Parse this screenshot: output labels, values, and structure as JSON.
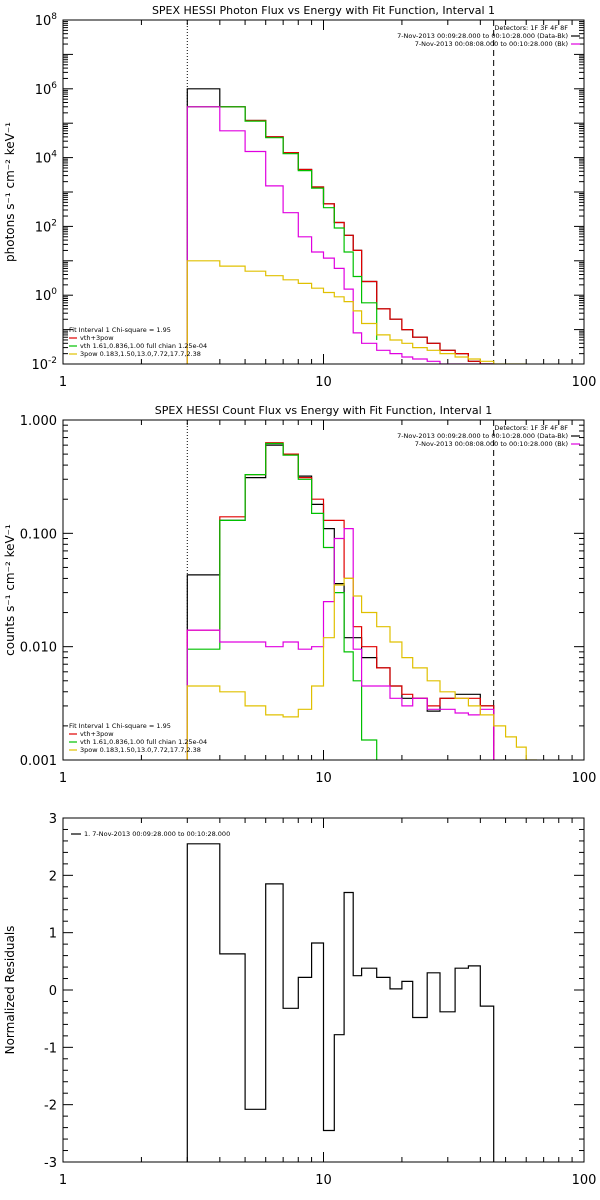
{
  "chart_data": [
    {
      "type": "line",
      "title": "SPEX HESSI Photon Flux vs Energy with Fit Function, Interval 1",
      "ylabel": "photons s⁻¹ cm⁻² keV⁻¹",
      "xscale": "log",
      "yscale": "log",
      "xlim": [
        1,
        100
      ],
      "ylim": [
        0.01,
        100000000
      ],
      "xticks": [
        {
          "v": 1,
          "label": "1"
        },
        {
          "v": 10,
          "label": "10"
        },
        {
          "v": 100,
          "label": "100"
        }
      ],
      "yticks": [
        {
          "v": 0.01,
          "base": "10",
          "exp": "-2"
        },
        {
          "v": 1,
          "base": "10",
          "exp": "0"
        },
        {
          "v": 100,
          "base": "10",
          "exp": "2"
        },
        {
          "v": 10000,
          "base": "10",
          "exp": "4"
        },
        {
          "v": 1000000,
          "base": "10",
          "exp": "6"
        },
        {
          "v": 100000000,
          "base": "10",
          "exp": "8"
        }
      ],
      "vlines": [
        {
          "x": 3,
          "style": "dotted"
        },
        {
          "x": 45,
          "style": "dashed"
        }
      ],
      "legend_top": [
        {
          "text": "Detectors: 1F 3F 4F 8F",
          "color": ""
        },
        {
          "text": "7-Nov-2013 00:09:28.000 to 00:10:28.000 (Data-Bk)",
          "color": "#000000"
        },
        {
          "text": "7-Nov-2013 00:08:08.000 to 00:10:28.000 (Bk)",
          "color": "#e000e0"
        }
      ],
      "legend_bottom": [
        {
          "text": "Fit Interval 1   Chi-square = 1.95",
          "color": ""
        },
        {
          "text": "vth+3pow",
          "color": "#e00000"
        },
        {
          "text": "vth 1.61,0.836,1.00  full chian 1.25e-04",
          "color": "#00c000"
        },
        {
          "text": "3pow 0.183,1.50,13.0,7.72,17.7,2.38",
          "color": "#e0c000"
        }
      ],
      "series": [
        {
          "color": "#000000",
          "edges": [
            3,
            4,
            5,
            6,
            7,
            8,
            9,
            10,
            11,
            12,
            13,
            14,
            16,
            18,
            20,
            22,
            25,
            28,
            32,
            36,
            40,
            45
          ],
          "values": [
            1000000,
            300000,
            120000,
            40000,
            14000,
            4500,
            1400,
            450,
            130,
            55,
            20,
            2.5,
            0.4,
            0.2,
            0.1,
            0.06,
            0.04,
            0.025,
            0.02,
            0.012,
            0.01
          ]
        },
        {
          "color": "#e00000",
          "edges": [
            3,
            4,
            5,
            6,
            7,
            8,
            9,
            10,
            11,
            12,
            13,
            14,
            16,
            18,
            20,
            22,
            25,
            28,
            32,
            36,
            40,
            45
          ],
          "values": [
            300000,
            300000,
            120000,
            40000,
            14000,
            4500,
            1400,
            450,
            130,
            55,
            20,
            2.5,
            0.4,
            0.2,
            0.1,
            0.06,
            0.04,
            0.025,
            0.02,
            0.012,
            0.01
          ]
        },
        {
          "color": "#00c000",
          "edges": [
            3,
            4,
            5,
            6,
            7,
            8,
            9,
            10,
            11,
            12,
            13,
            14,
            16
          ],
          "values": [
            300000,
            300000,
            115000,
            38000,
            13000,
            4200,
            1300,
            350,
            90,
            18,
            3.5,
            0.6,
            0.05
          ]
        },
        {
          "color": "#e000e0",
          "edges": [
            3,
            4,
            5,
            6,
            7,
            8,
            9,
            10,
            11,
            12,
            13,
            14,
            16,
            18,
            20,
            22,
            25,
            28,
            32,
            36,
            40,
            45
          ],
          "values": [
            300000,
            60000,
            15000,
            1500,
            250,
            50,
            18,
            12,
            6,
            1.5,
            0.08,
            0.04,
            0.025,
            0.02,
            0.016,
            0.014,
            0.012,
            0.01,
            0.01,
            0.01,
            0.01
          ]
        },
        {
          "color": "#e0c000",
          "edges": [
            3,
            4,
            5,
            6,
            7,
            8,
            9,
            10,
            11,
            12,
            13,
            14,
            16,
            18,
            20,
            22,
            25,
            28,
            32,
            36,
            40,
            45,
            50,
            55,
            60
          ],
          "values": [
            10,
            7,
            5,
            3.7,
            2.8,
            2.2,
            1.6,
            1.2,
            0.9,
            0.65,
            0.35,
            0.15,
            0.07,
            0.05,
            0.04,
            0.03,
            0.025,
            0.02,
            0.016,
            0.014,
            0.012,
            0.01,
            0.01,
            0.01
          ]
        }
      ]
    },
    {
      "type": "line",
      "title": "SPEX HESSI Count Flux vs Energy with Fit Function, Interval 1",
      "ylabel": "counts s⁻¹ cm⁻² keV⁻¹",
      "xscale": "log",
      "yscale": "log",
      "xlim": [
        1,
        100
      ],
      "ylim": [
        0.001,
        1
      ],
      "xticks": [
        {
          "v": 1,
          "label": "1"
        },
        {
          "v": 10,
          "label": "10"
        },
        {
          "v": 100,
          "label": "100"
        }
      ],
      "yticks": [
        {
          "v": 0.001,
          "label": "0.001"
        },
        {
          "v": 0.01,
          "label": "0.010"
        },
        {
          "v": 0.1,
          "label": "0.100"
        },
        {
          "v": 1,
          "label": "1.000"
        }
      ],
      "vlines": [
        {
          "x": 3,
          "style": "dotted"
        },
        {
          "x": 45,
          "style": "dashed"
        }
      ],
      "legend_top": [
        {
          "text": "Detectors: 1F 3F 4F 8F",
          "color": ""
        },
        {
          "text": "7-Nov-2013 00:09:28.000 to 00:10:28.000 (Data-Bk)",
          "color": "#000000"
        },
        {
          "text": "7-Nov-2013 00:08:08.000 to 00:10:28.000 (Bk)",
          "color": "#e000e0"
        }
      ],
      "legend_bottom": [
        {
          "text": "Fit Interval 1   Chi-square = 1.95",
          "color": ""
        },
        {
          "text": "vth+3pow",
          "color": "#e00000"
        },
        {
          "text": "vth 1.61,0.836,1.00  full chian 1.25e-04",
          "color": "#00c000"
        },
        {
          "text": "3pow 0.183,1.50,13.0,7.72,17.7,2.38",
          "color": "#e0c000"
        }
      ],
      "series": [
        {
          "color": "#000000",
          "edges": [
            3,
            4,
            5,
            6,
            7,
            8,
            9,
            10,
            11,
            12,
            13,
            14,
            16,
            18,
            20,
            22,
            25,
            28,
            32,
            36,
            40,
            45
          ],
          "values": [
            0.043,
            0.13,
            0.31,
            0.6,
            0.5,
            0.32,
            0.18,
            0.11,
            0.036,
            0.012,
            0.012,
            0.008,
            0.0065,
            0.0045,
            0.0035,
            0.0035,
            0.0027,
            0.0035,
            0.0038,
            0.0038,
            0.003
          ]
        },
        {
          "color": "#e00000",
          "edges": [
            3,
            4,
            5,
            6,
            7,
            8,
            9,
            10,
            11,
            12,
            13,
            14,
            16,
            18,
            20,
            22,
            25,
            28,
            32,
            36,
            40,
            45
          ],
          "values": [
            0.014,
            0.14,
            0.33,
            0.63,
            0.5,
            0.31,
            0.2,
            0.13,
            0.13,
            0.04,
            0.015,
            0.01,
            0.0065,
            0.0045,
            0.0038,
            0.0035,
            0.003,
            0.0035,
            0.0035,
            0.0035,
            0.003
          ]
        },
        {
          "color": "#00c000",
          "edges": [
            3,
            4,
            5,
            6,
            7,
            8,
            9,
            10,
            11,
            12,
            13,
            14,
            16
          ],
          "values": [
            0.0095,
            0.13,
            0.33,
            0.62,
            0.49,
            0.3,
            0.15,
            0.075,
            0.03,
            0.009,
            0.005,
            0.0015
          ]
        },
        {
          "color": "#e000e0",
          "edges": [
            3,
            4,
            5,
            6,
            7,
            8,
            9,
            10,
            11,
            12,
            13,
            14,
            16,
            18,
            20,
            22,
            25,
            28,
            32,
            36,
            40,
            45
          ],
          "values": [
            0.014,
            0.011,
            0.011,
            0.01,
            0.011,
            0.0095,
            0.01,
            0.025,
            0.09,
            0.11,
            0.0095,
            0.0045,
            0.0045,
            0.0035,
            0.003,
            0.0035,
            0.0028,
            0.0028,
            0.0026,
            0.0025,
            0.0028
          ]
        },
        {
          "color": "#e0c000",
          "edges": [
            3,
            4,
            5,
            6,
            7,
            8,
            9,
            10,
            11,
            12,
            13,
            14,
            16,
            18,
            20,
            22,
            25,
            28,
            32,
            36,
            40,
            45,
            50,
            55,
            60,
            66
          ],
          "values": [
            0.0045,
            0.004,
            0.003,
            0.0025,
            0.0024,
            0.0028,
            0.0045,
            0.012,
            0.035,
            0.04,
            0.028,
            0.02,
            0.015,
            0.011,
            0.008,
            0.0065,
            0.005,
            0.004,
            0.0035,
            0.003,
            0.0025,
            0.002,
            0.0016,
            0.0013,
            0.001
          ]
        }
      ]
    },
    {
      "type": "line",
      "title": "",
      "ylabel": "Normalized Residuals",
      "xscale": "log",
      "yscale": "linear",
      "xlim": [
        1,
        100
      ],
      "ylim": [
        -3,
        3
      ],
      "xticks": [
        {
          "v": 1,
          "label": "1"
        },
        {
          "v": 10,
          "label": "10"
        },
        {
          "v": 100,
          "label": "100"
        }
      ],
      "yticks": [
        {
          "v": 3,
          "label": "3"
        },
        {
          "v": 2,
          "label": "2"
        },
        {
          "v": 1,
          "label": "1"
        },
        {
          "v": 0,
          "label": "0"
        },
        {
          "v": -1,
          "label": "-1"
        },
        {
          "v": -2,
          "label": "-2"
        },
        {
          "v": -3,
          "label": "-3"
        }
      ],
      "vlines": [],
      "legend_top_left": [
        {
          "text": "1.  7-Nov-2013 00:09:28.000 to 00:10:28.000",
          "color": "#000000"
        }
      ],
      "series": [
        {
          "color": "#000000",
          "edges": [
            3,
            4,
            5,
            6,
            7,
            8,
            9,
            10,
            11,
            12,
            13,
            14,
            16,
            18,
            20,
            22,
            25,
            28,
            32,
            36,
            40,
            45
          ],
          "values": [
            2.55,
            0.63,
            -2.08,
            1.85,
            -0.32,
            0.22,
            0.82,
            -2.45,
            -0.78,
            1.7,
            0.25,
            0.38,
            0.22,
            0.02,
            0.15,
            -0.48,
            0.3,
            -0.38,
            0.38,
            0.42,
            -0.28
          ]
        }
      ]
    }
  ]
}
